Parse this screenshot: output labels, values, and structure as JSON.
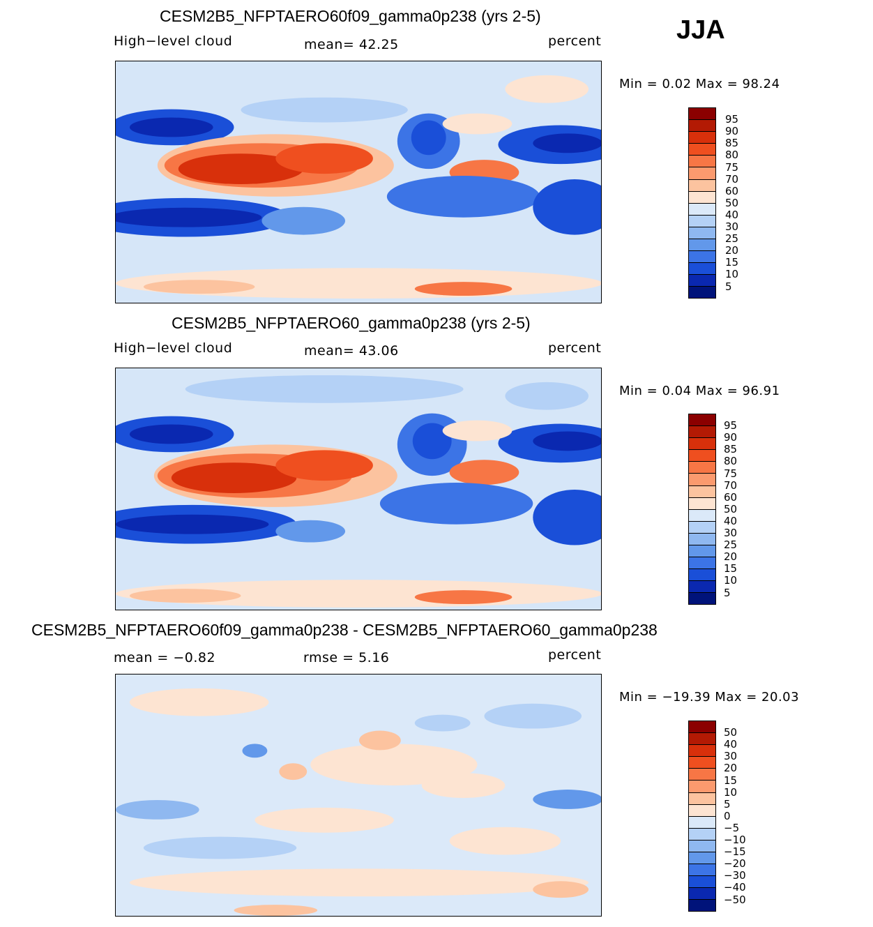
{
  "season": "JJA",
  "panels": [
    {
      "title": "CESM2B5_NFPTAERO60f09_gamma0p238 (yrs 2-5)",
      "variable": "High−level cloud",
      "stat_text": "mean=   42.25",
      "units": "percent",
      "minmax_text": "Min  =    0.02  Max  =    98.24"
    },
    {
      "title": "CESM2B5_NFPTAERO60_gamma0p238 (yrs 2-5)",
      "variable": "High−level cloud",
      "stat_text": "mean=   43.06",
      "units": "percent",
      "minmax_text": "Min  =    0.04  Max  =    96.91"
    },
    {
      "title": "CESM2B5_NFPTAERO60f09_gamma0p238 - CESM2B5_NFPTAERO60_gamma0p238",
      "mean_text": "mean  =   −0.82",
      "rmse_text": "rmse  =     5.16",
      "units": "percent",
      "minmax_text": "Min  = −19.39  Max  =    20.03"
    }
  ],
  "colorbars": {
    "abs_labels": [
      "95",
      "90",
      "85",
      "80",
      "75",
      "70",
      "60",
      "50",
      "40",
      "30",
      "25",
      "20",
      "15",
      "10",
      "5"
    ],
    "abs_colors": [
      "#8b0000",
      "#b31a04",
      "#d8300b",
      "#ef4f1f",
      "#f77645",
      "#fb9a6e",
      "#fcc39f",
      "#fde4d2",
      "#dbe9f9",
      "#b4d1f6",
      "#8fb8f0",
      "#6298ea",
      "#3c74e6",
      "#1a4fd8",
      "#0a28b0",
      "#00137a"
    ],
    "diff_labels": [
      "50",
      "40",
      "30",
      "20",
      "15",
      "10",
      "5",
      "0",
      "−5",
      "−10",
      "−15",
      "−20",
      "−30",
      "−40",
      "−50"
    ],
    "diff_colors": [
      "#8b0000",
      "#b31a04",
      "#d8300b",
      "#ef4f1f",
      "#f77645",
      "#fb9a6e",
      "#fcc39f",
      "#fde4d2",
      "#dbe9f9",
      "#b4d1f6",
      "#8fb8f0",
      "#6298ea",
      "#3c74e6",
      "#1a4fd8",
      "#0a28b0",
      "#00137a"
    ]
  },
  "chart_data": [
    {
      "type": "heatmap",
      "title": "CESM2B5_NFPTAERO60f09_gamma0p238 (yrs 2-5)",
      "field": "High-level cloud",
      "units": "percent",
      "mean": 42.25,
      "min": 0.02,
      "max": 98.24,
      "contour_levels": [
        5,
        10,
        15,
        20,
        25,
        30,
        40,
        50,
        60,
        70,
        75,
        80,
        85,
        90,
        95
      ]
    },
    {
      "type": "heatmap",
      "title": "CESM2B5_NFPTAERO60_gamma0p238 (yrs 2-5)",
      "field": "High-level cloud",
      "units": "percent",
      "mean": 43.06,
      "min": 0.04,
      "max": 96.91,
      "contour_levels": [
        5,
        10,
        15,
        20,
        25,
        30,
        40,
        50,
        60,
        70,
        75,
        80,
        85,
        90,
        95
      ]
    },
    {
      "type": "heatmap",
      "title": "CESM2B5_NFPTAERO60f09_gamma0p238 - CESM2B5_NFPTAERO60_gamma0p238",
      "units": "percent",
      "mean": -0.82,
      "rmse": 5.16,
      "min": -19.39,
      "max": 20.03,
      "contour_levels": [
        -50,
        -40,
        -30,
        -20,
        -15,
        -10,
        -5,
        0,
        5,
        10,
        15,
        20,
        30,
        40,
        50
      ]
    }
  ]
}
